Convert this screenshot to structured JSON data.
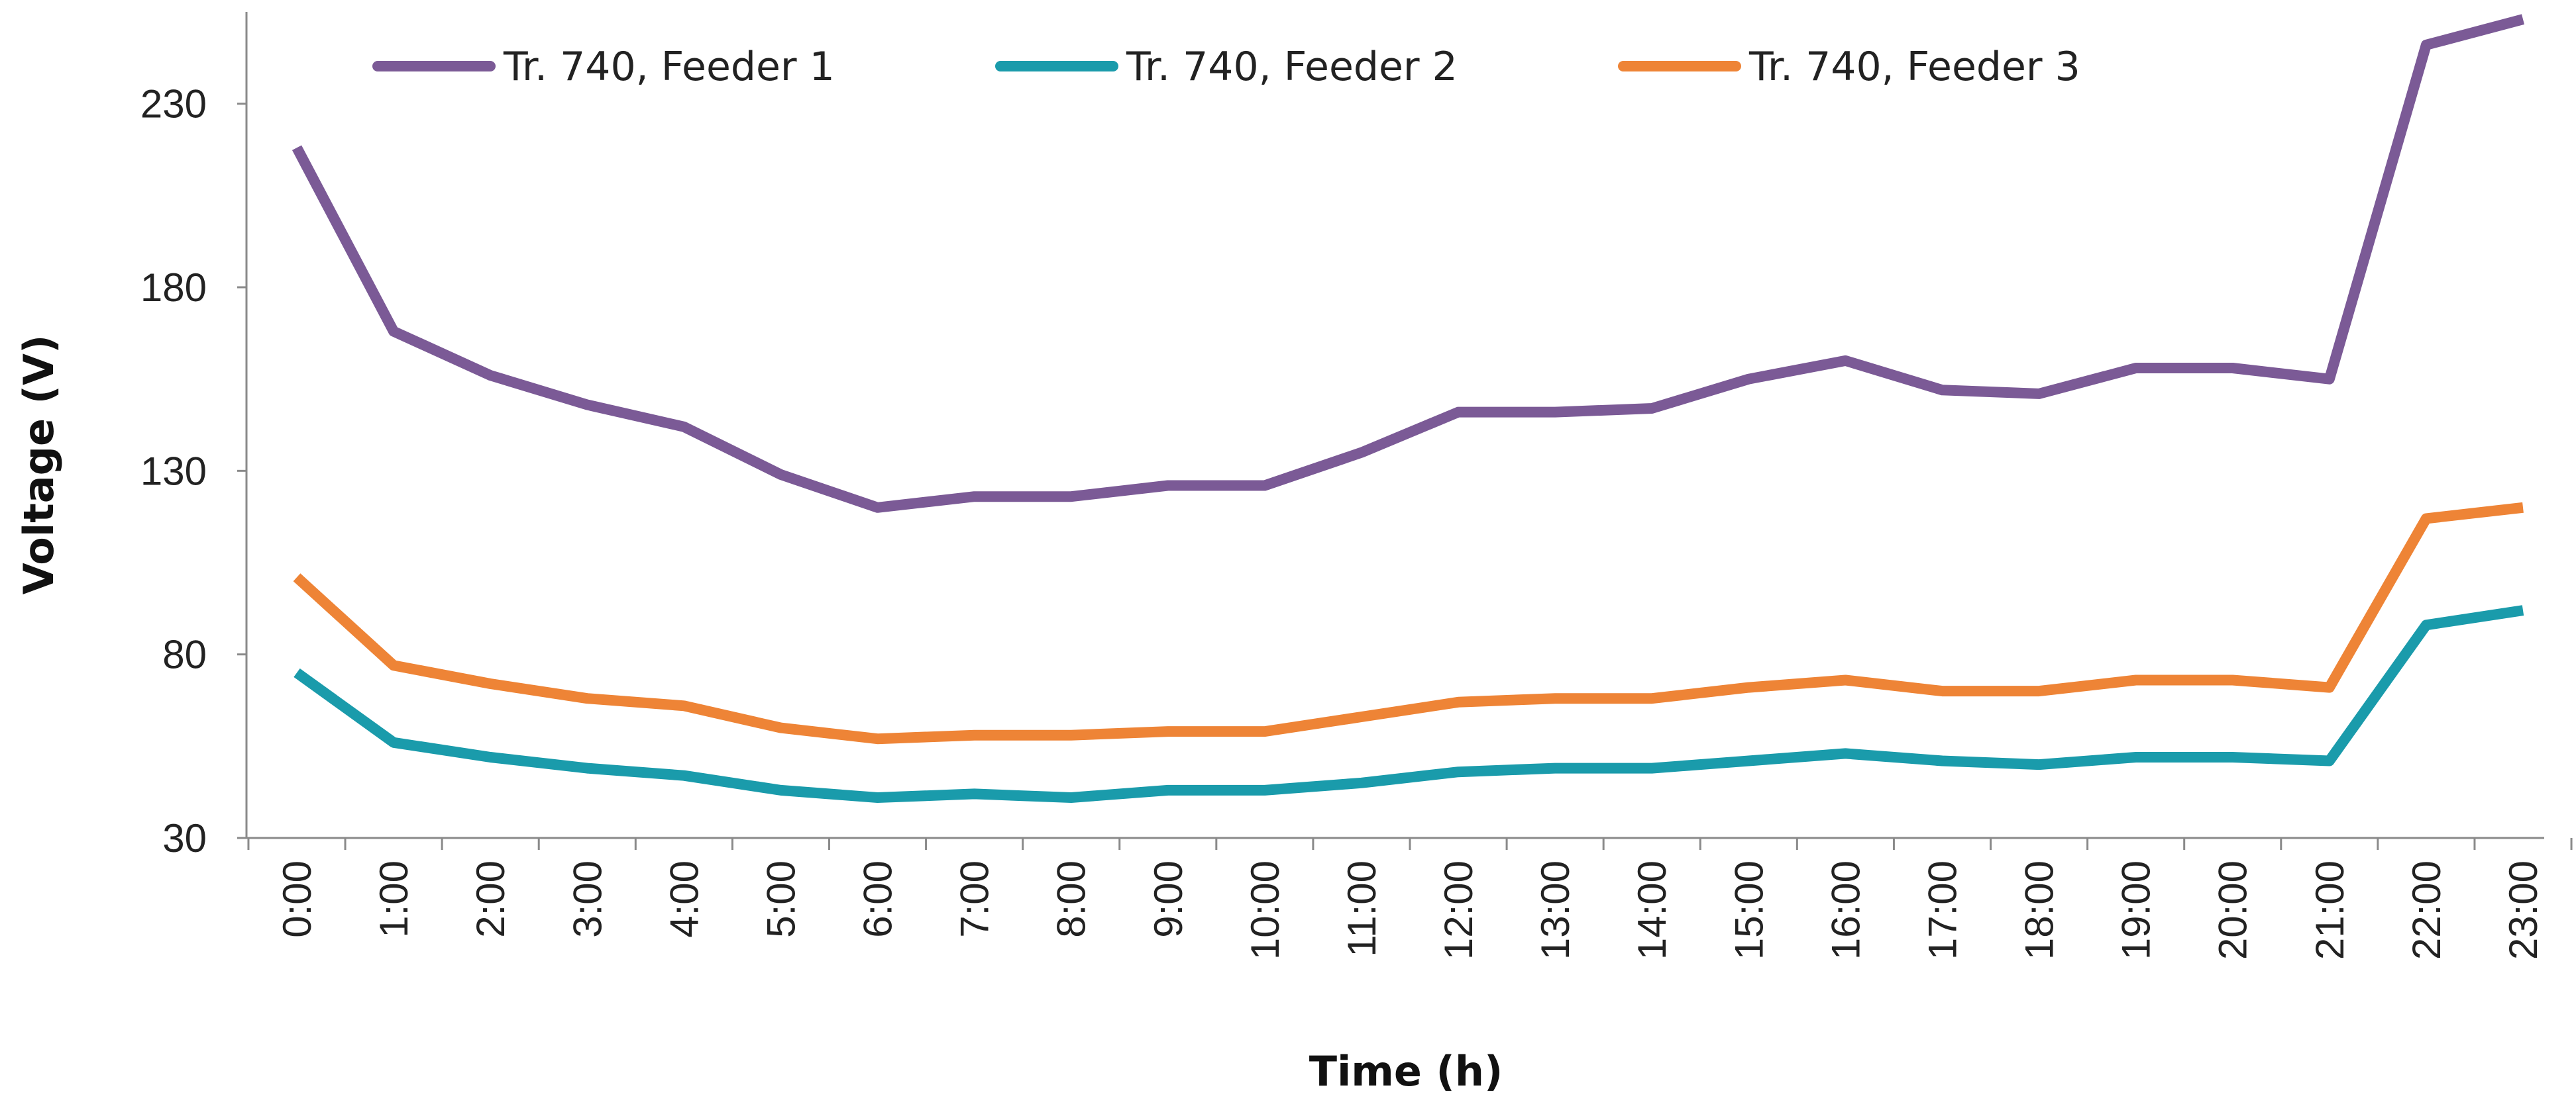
{
  "chart_data": {
    "type": "line",
    "title": "",
    "xlabel": "Time (h)",
    "ylabel": "Voltage (V)",
    "ylim": [
      30,
      255
    ],
    "yticks": [
      30,
      80,
      130,
      180,
      230
    ],
    "grid": false,
    "legend_position": "top",
    "categories": [
      "0:00",
      "1:00",
      "2:00",
      "3:00",
      "4:00",
      "5:00",
      "6:00",
      "7:00",
      "8:00",
      "9:00",
      "10:00",
      "11:00",
      "12:00",
      "13:00",
      "14:00",
      "15:00",
      "16:00",
      "17:00",
      "18:00",
      "19:00",
      "20:00",
      "21:00",
      "22:00",
      "23:00"
    ],
    "series": [
      {
        "name": "Tr. 740, Feeder 1",
        "color": "#7b5a96",
        "values": [
          218,
          168,
          156,
          148,
          142,
          129,
          120,
          123,
          123,
          126,
          126,
          135,
          146,
          146,
          147,
          155,
          160,
          152,
          151,
          158,
          158,
          155,
          246,
          253
        ]
      },
      {
        "name": "Tr. 740, Feeder 2",
        "color": "#1a9bab",
        "values": [
          75,
          56,
          52,
          49,
          47,
          43,
          41,
          42,
          41,
          43,
          43,
          45,
          48,
          49,
          49,
          51,
          53,
          51,
          50,
          52,
          52,
          51,
          88,
          92
        ]
      },
      {
        "name": "Tr. 740, Feeder 3",
        "color": "#ee8436",
        "values": [
          101,
          77,
          72,
          68,
          66,
          60,
          57,
          58,
          58,
          59,
          59,
          63,
          67,
          68,
          68,
          71,
          73,
          70,
          70,
          73,
          73,
          71,
          117,
          120
        ]
      }
    ]
  }
}
